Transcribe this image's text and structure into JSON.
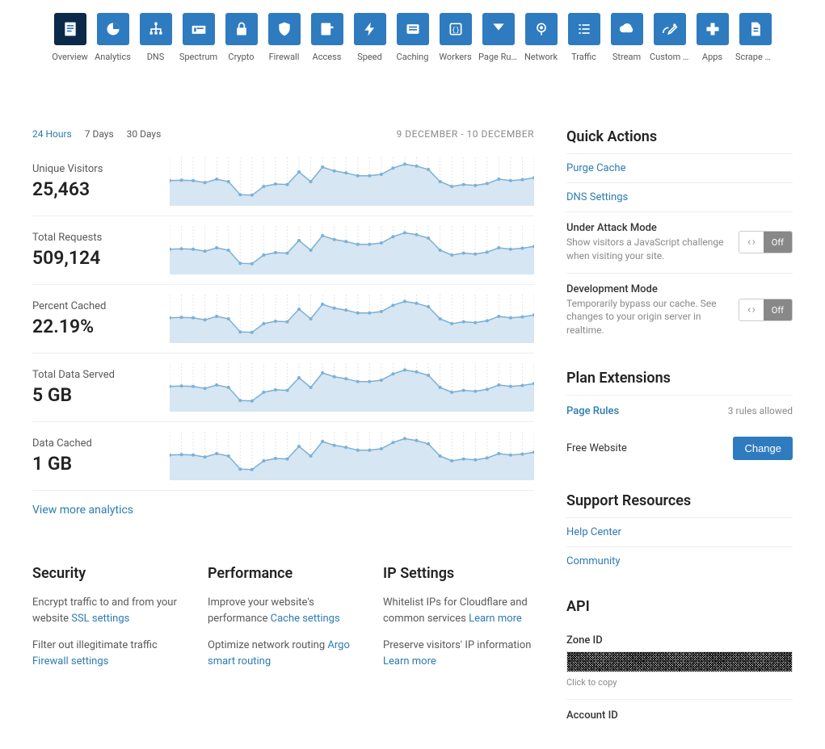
{
  "nav": {
    "items": [
      {
        "label": "Overview",
        "icon": "overview",
        "active": true
      },
      {
        "label": "Analytics",
        "icon": "analytics"
      },
      {
        "label": "DNS",
        "icon": "dns"
      },
      {
        "label": "Spectrum",
        "icon": "spectrum"
      },
      {
        "label": "Crypto",
        "icon": "crypto"
      },
      {
        "label": "Firewall",
        "icon": "firewall"
      },
      {
        "label": "Access",
        "icon": "access"
      },
      {
        "label": "Speed",
        "icon": "speed"
      },
      {
        "label": "Caching",
        "icon": "caching"
      },
      {
        "label": "Workers",
        "icon": "workers"
      },
      {
        "label": "Page Rules",
        "icon": "pagerules"
      },
      {
        "label": "Network",
        "icon": "network"
      },
      {
        "label": "Traffic",
        "icon": "traffic"
      },
      {
        "label": "Stream",
        "icon": "stream"
      },
      {
        "label": "Custom P...",
        "icon": "custompages"
      },
      {
        "label": "Apps",
        "icon": "apps"
      },
      {
        "label": "Scrape S...",
        "icon": "scrape"
      }
    ],
    "icon_colors": {
      "bg": "#2f7bbf",
      "active_bg": "#0b2948",
      "fg": "#ffffff"
    }
  },
  "time": {
    "tabs": [
      {
        "label": "24 Hours",
        "active": true
      },
      {
        "label": "7 Days"
      },
      {
        "label": "30 Days"
      }
    ],
    "range": "9 DECEMBER - 10 DECEMBER"
  },
  "metrics": [
    {
      "label": "Unique Visitors",
      "value": "25,463"
    },
    {
      "label": "Total Requests",
      "value": "509,124"
    },
    {
      "label": "Percent Cached",
      "value": "22.19%"
    },
    {
      "label": "Total Data Served",
      "value": "5 GB"
    },
    {
      "label": "Data Cached",
      "value": "1 GB"
    }
  ],
  "chart": {
    "points": [
      52,
      53,
      52,
      48,
      55,
      50,
      23,
      22,
      40,
      45,
      44,
      70,
      50,
      80,
      72,
      68,
      62,
      62,
      65,
      78,
      86,
      82,
      75,
      50,
      40,
      44,
      42,
      46,
      55,
      52,
      54,
      58
    ],
    "ymax": 100,
    "area_color": "#d6e6f2",
    "line_color": "#7db0d6",
    "grid_color": "#e6e6e6",
    "dot_radius": 2
  },
  "view_more": "View more analytics",
  "info": {
    "security": {
      "title": "Security",
      "items": [
        {
          "text": "Encrypt traffic to and from your website ",
          "link": "SSL settings"
        },
        {
          "text": "Filter out illegitimate traffic ",
          "link": "Firewall settings"
        }
      ]
    },
    "performance": {
      "title": "Performance",
      "items": [
        {
          "text": "Improve your website's performance ",
          "link": "Cache settings"
        },
        {
          "text": "Optimize network routing ",
          "link": "Argo smart routing"
        }
      ]
    },
    "ip": {
      "title": "IP Settings",
      "items": [
        {
          "text": "Whitelist IPs for Cloudflare and common services ",
          "link": "Learn more"
        },
        {
          "text": "Preserve visitors' IP information ",
          "link": "Learn more"
        }
      ]
    }
  },
  "quick": {
    "title": "Quick Actions",
    "links": [
      {
        "label": "Purge Cache"
      },
      {
        "label": "DNS Settings"
      }
    ],
    "toggles": [
      {
        "title": "Under Attack Mode",
        "desc": "Show visitors a JavaScript challenge when visiting your site.",
        "state": "Off"
      },
      {
        "title": "Development Mode",
        "desc": "Temporarily bypass our cache. See changes to your origin server in realtime.",
        "state": "Off"
      }
    ]
  },
  "plan": {
    "title": "Plan Extensions",
    "rules_link": "Page Rules",
    "rules_allowed": "3 rules allowed",
    "plan_name": "Free Website",
    "button": "Change"
  },
  "support": {
    "title": "Support Resources",
    "links": [
      {
        "label": "Help Center"
      },
      {
        "label": "Community"
      }
    ]
  },
  "api": {
    "title": "API",
    "zone_label": "Zone ID",
    "click_copy": "Click to copy",
    "account_label": "Account ID"
  },
  "toggle_label": "Off",
  "colors": {
    "link": "#2c7cb0",
    "text": "#595959",
    "heading": "#222222",
    "border": "#eeeeee"
  }
}
